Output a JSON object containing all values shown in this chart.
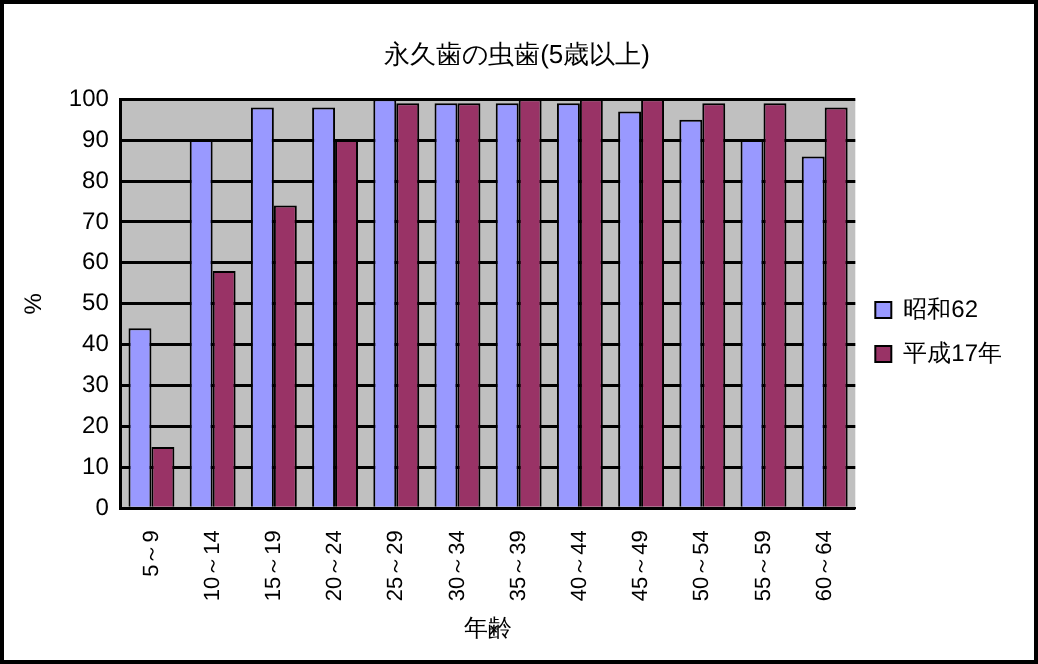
{
  "chart_data": {
    "type": "bar",
    "title": "永久歯の虫歯(5歳以上)",
    "xlabel": "年齢",
    "ylabel": "%",
    "categories": [
      "5～9",
      "10～14",
      "15～19",
      "20～24",
      "25～29",
      "30～34",
      "35～39",
      "40～44",
      "45～49",
      "50～54",
      "55～59",
      "60～64"
    ],
    "series": [
      {
        "name": "昭和62",
        "color": "#9999ff",
        "values": [
          44,
          90,
          98,
          98,
          100,
          99,
          99,
          99,
          97,
          95,
          90,
          86
        ]
      },
      {
        "name": "平成17年",
        "color": "#993366",
        "values": [
          15,
          58,
          74,
          90,
          99,
          99,
          100,
          100,
          100,
          99,
          99,
          98
        ]
      }
    ],
    "ylim": [
      0,
      100
    ],
    "yticks": [
      0,
      10,
      20,
      30,
      40,
      50,
      60,
      70,
      80,
      90,
      100
    ],
    "grid": "y",
    "legend": "right"
  }
}
